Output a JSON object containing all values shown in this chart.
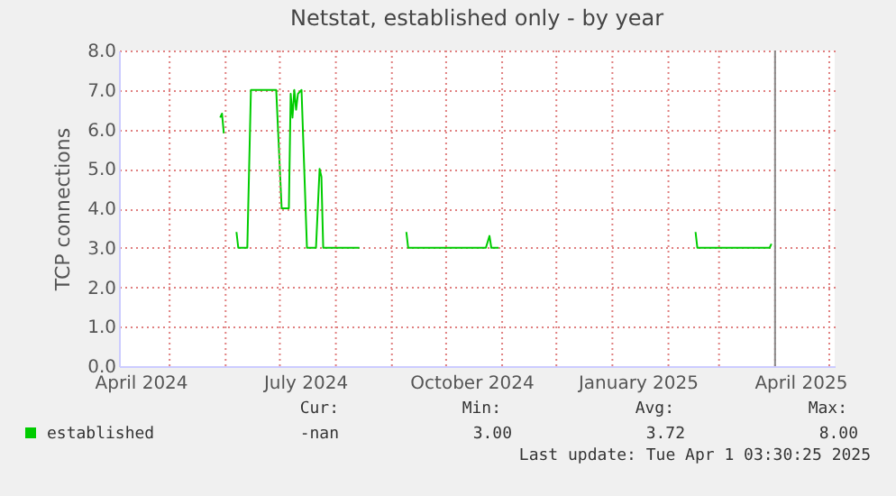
{
  "chart_data": {
    "type": "line",
    "title": "Netstat, established only - by year",
    "ylabel": "TCP connections",
    "x": [
      "2024-05-29",
      "2024-05-30",
      "2024-05-31",
      "2024-06-01",
      "2024-06-07",
      "2024-06-08",
      "2024-06-13",
      "2024-06-15",
      "2024-06-22",
      "2024-06-29",
      "2024-07-02",
      "2024-07-06",
      "2024-07-07",
      "2024-07-08",
      "2024-07-09",
      "2024-07-10",
      "2024-07-11",
      "2024-07-13",
      "2024-07-16",
      "2024-07-21",
      "2024-07-23",
      "2024-07-24",
      "2024-07-25",
      "2024-08-14",
      "2024-08-15",
      "2024-09-09",
      "2024-09-10",
      "2024-10-23",
      "2024-10-25",
      "2024-10-26",
      "2024-10-30",
      "2024-10-31",
      "2025-02-16",
      "2025-02-17",
      "2025-03-29",
      "2025-03-30"
    ],
    "series": [
      {
        "name": "established",
        "color": "#00cc00",
        "values": [
          6.3,
          6.4,
          5.9,
          null,
          3.4,
          3.0,
          3.0,
          7.0,
          7.0,
          7.0,
          4.0,
          4.0,
          6.9,
          6.3,
          7.0,
          6.5,
          6.9,
          7.0,
          3.0,
          3.0,
          5.0,
          4.8,
          3.0,
          3.0,
          null,
          3.4,
          3.0,
          3.0,
          3.3,
          3.0,
          3.0,
          null,
          3.4,
          3.0,
          3.0,
          3.1
        ]
      }
    ],
    "xlim": [
      "2024-04-03",
      "2025-05-04"
    ],
    "xticks": [
      {
        "value": "2024-04-15",
        "label": "April 2024"
      },
      {
        "value": "2024-05-01",
        "label": null
      },
      {
        "value": "2024-06-01",
        "label": null
      },
      {
        "value": "2024-07-01",
        "label": null
      },
      {
        "value": "2024-07-15",
        "label": "July 2024"
      },
      {
        "value": "2024-08-01",
        "label": null
      },
      {
        "value": "2024-09-01",
        "label": null
      },
      {
        "value": "2024-10-01",
        "label": null
      },
      {
        "value": "2024-10-15",
        "label": "October 2024"
      },
      {
        "value": "2024-11-01",
        "label": null
      },
      {
        "value": "2024-12-01",
        "label": null
      },
      {
        "value": "2025-01-01",
        "label": null
      },
      {
        "value": "2025-01-15",
        "label": "January 2025"
      },
      {
        "value": "2025-02-01",
        "label": null
      },
      {
        "value": "2025-03-01",
        "label": null
      },
      {
        "value": "2025-04-01",
        "label": null
      },
      {
        "value": "2025-04-15",
        "label": "April 2025"
      },
      {
        "value": "2025-05-01",
        "label": null
      }
    ],
    "ylim": [
      0,
      8
    ],
    "yticks": [
      {
        "value": 0,
        "label": "0.0"
      },
      {
        "value": 1,
        "label": "1.0"
      },
      {
        "value": 2,
        "label": "2.0"
      },
      {
        "value": 3,
        "label": "3.0"
      },
      {
        "value": 4,
        "label": "4.0"
      },
      {
        "value": 5,
        "label": "5.0"
      },
      {
        "value": 6,
        "label": "6.0"
      },
      {
        "value": 7,
        "label": "7.0"
      },
      {
        "value": 8,
        "label": "8.0"
      }
    ],
    "grid": true,
    "legend": "bottom left",
    "ref_lines": [
      {
        "axis": "x",
        "value": "2025-04-01",
        "label": null,
        "color": "#888888"
      }
    ],
    "annotations": [
      "Cur:",
      "Min:",
      "Avg:",
      "Max:",
      "-nan",
      "3.00",
      "3.72",
      "8.00",
      "Last update: Tue Apr  1 03:30:25 2025"
    ]
  }
}
